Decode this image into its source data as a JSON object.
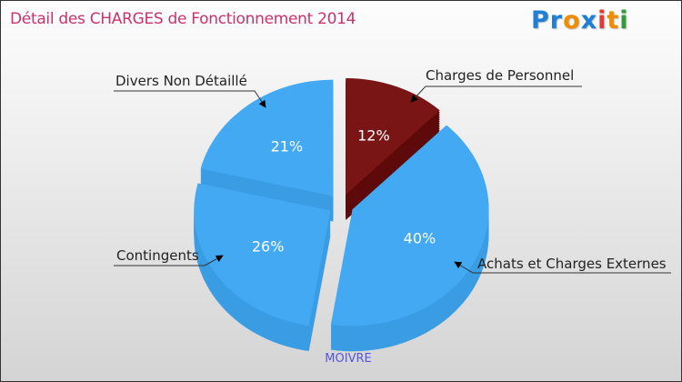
{
  "title": "Détail des CHARGES de Fonctionnement 2014",
  "logo": {
    "text": "Proxiti",
    "letters": [
      "P",
      "r",
      "o",
      "x",
      "i",
      "t",
      "i"
    ],
    "colors": [
      "#1f7fd6",
      "#1f7fd6",
      "#f08c00",
      "#1f7fd6",
      "#e53935",
      "#f08c00",
      "#2e9d3a"
    ]
  },
  "chart_data": {
    "type": "pie",
    "title": "Détail des CHARGES de Fonctionnement 2014",
    "subtitle": "MOIVRE",
    "slices": [
      {
        "label": "Charges de Personnel",
        "value": 12,
        "pct": "12%",
        "color": "#7a1515",
        "side": "#5e0a0a"
      },
      {
        "label": "Achats et Charges Externes",
        "value": 40,
        "pct": "40%",
        "color": "#42a9f2",
        "side": "#3a9de4"
      },
      {
        "label": "Contingents",
        "value": 26,
        "pct": "26%",
        "color": "#42a9f2",
        "side": "#3a9de4"
      },
      {
        "label": "Divers Non Détaillé",
        "value": 21,
        "pct": "21%",
        "color": "#42a9f2",
        "side": "#3a9de4"
      }
    ]
  }
}
